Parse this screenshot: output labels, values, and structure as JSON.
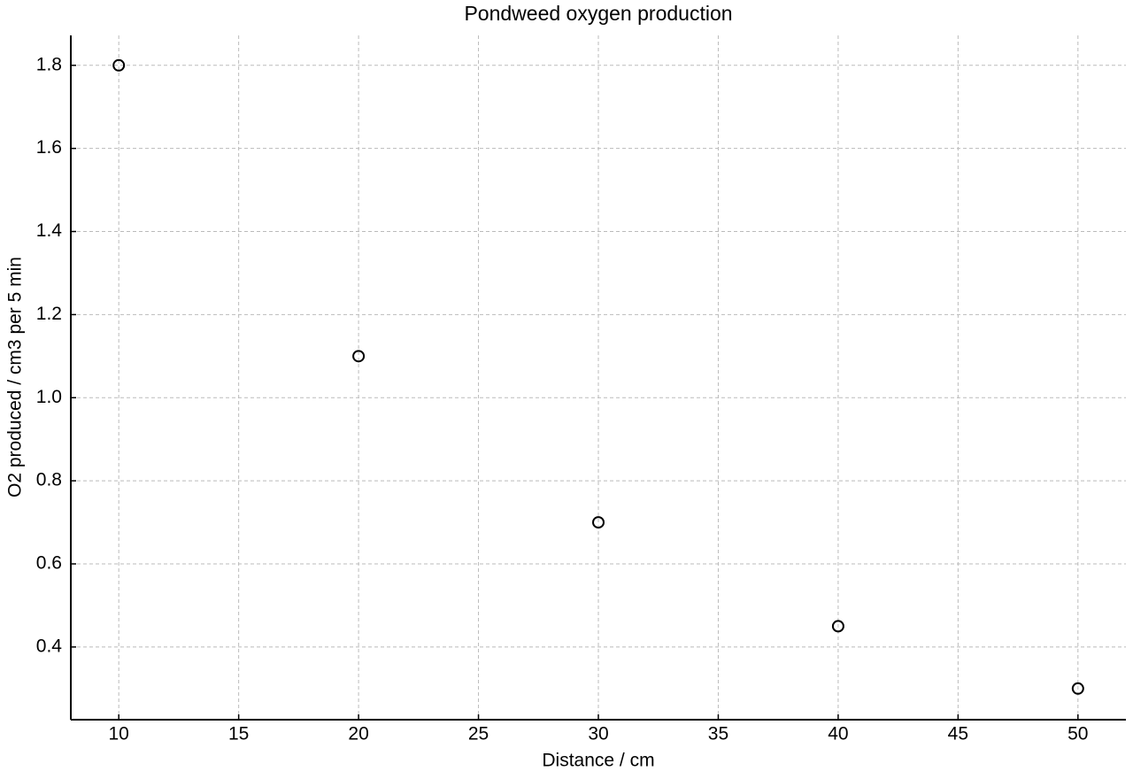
{
  "chart_data": {
    "type": "scatter",
    "title": "Pondweed oxygen production",
    "x_label": "Distance / cm",
    "y_label": "O2 produced / cm3 per 5 min",
    "x": [
      10,
      20,
      30,
      40,
      50
    ],
    "values": [
      1.8,
      1.1,
      0.7,
      0.45,
      0.3
    ],
    "color": "#000000",
    "xlim": [
      8,
      52
    ],
    "xticks": [
      10,
      15,
      20,
      25,
      30,
      35,
      40,
      45,
      50
    ],
    "ylim": [
      0.225,
      1.872
    ],
    "yticks": [
      0.4,
      0.6,
      0.8,
      {
        "value": 1,
        "label": "1.0"
      },
      1.2,
      1.4,
      1.6,
      1.8
    ],
    "grid": true
  }
}
